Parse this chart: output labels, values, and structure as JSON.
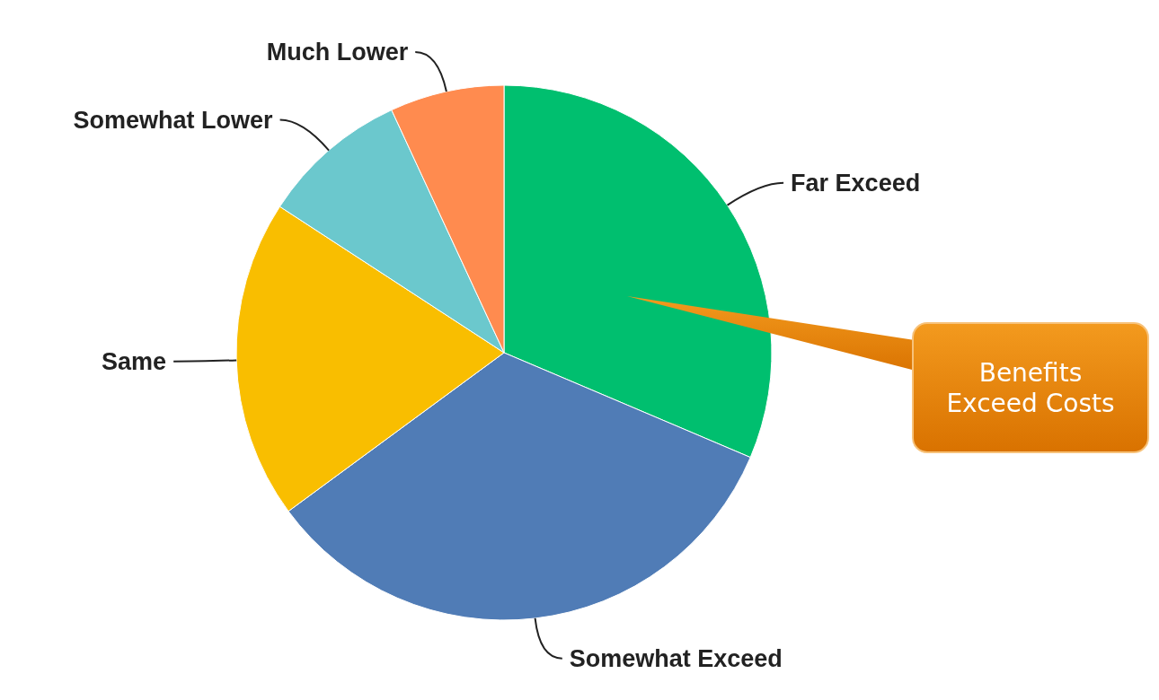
{
  "chart_data": {
    "type": "pie",
    "categories": [
      "Far Exceed",
      "Somewhat Exceed",
      "Same",
      "Somewhat Lower",
      "Much Lower"
    ],
    "values": [
      31.4,
      33.5,
      19.3,
      8.9,
      6.9
    ],
    "colors": [
      "#00bf6f",
      "#507cb6",
      "#f9be00",
      "#6bc8cd",
      "#ff8b4f"
    ],
    "annotations": [
      "Benefits\nExceed Costs"
    ]
  }
}
